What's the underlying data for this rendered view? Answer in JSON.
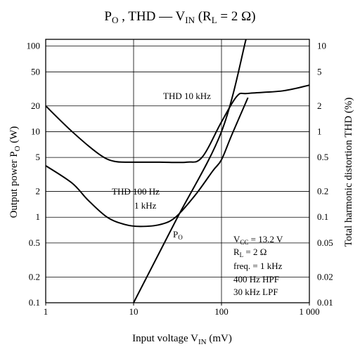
{
  "chart_data": {
    "type": "line",
    "title": {
      "p": "P",
      "o": "O",
      "mid": " , THD — V",
      "in": "IN",
      "rl_open": " (R",
      "l": "L",
      "rl_value": " = 2 Ω)"
    },
    "xlabel": {
      "main": "Input voltage  V",
      "sub": "IN",
      "unit": " (mV)"
    },
    "ylabel_left": {
      "main": "Output power  P",
      "sub": "O",
      "unit": " (W)"
    },
    "ylabel_right": {
      "main": "Total harmonic distortion  THD (%)"
    },
    "x_scale": "log",
    "y_left_scale": "log",
    "y_right_scale": "log",
    "xlim": [
      1,
      1000
    ],
    "ylim_left": [
      0.1,
      120
    ],
    "ylim_right": [
      0.01,
      12
    ],
    "grid": true,
    "x_ticks": [
      {
        "value": 1,
        "label": "1"
      },
      {
        "value": 10,
        "label": "10"
      },
      {
        "value": 100,
        "label": "100"
      },
      {
        "value": 1000,
        "label": "1 000"
      }
    ],
    "y_left_ticks": [
      {
        "value": 0.1,
        "label": "0.1"
      },
      {
        "value": 0.2,
        "label": "0.2"
      },
      {
        "value": 0.5,
        "label": "0.5"
      },
      {
        "value": 1,
        "label": "1"
      },
      {
        "value": 2,
        "label": "2"
      },
      {
        "value": 5,
        "label": "5"
      },
      {
        "value": 10,
        "label": "10"
      },
      {
        "value": 20,
        "label": "20"
      },
      {
        "value": 50,
        "label": "50"
      },
      {
        "value": 100,
        "label": "100"
      }
    ],
    "y_right_ticks": [
      {
        "value": 0.01,
        "label": "0.01"
      },
      {
        "value": 0.02,
        "label": "0.02"
      },
      {
        "value": 0.05,
        "label": "0.05"
      },
      {
        "value": 0.1,
        "label": "0.1"
      },
      {
        "value": 0.2,
        "label": "0.2"
      },
      {
        "value": 0.5,
        "label": "0.5"
      },
      {
        "value": 1,
        "label": "1"
      },
      {
        "value": 2,
        "label": "2"
      },
      {
        "value": 5,
        "label": "5"
      },
      {
        "value": 10,
        "label": "10"
      }
    ],
    "series": [
      {
        "axis": "left",
        "x": [
          10,
          30,
          100,
          190
        ],
        "y": [
          0.1,
          0.9,
          10,
          120
        ]
      },
      {
        "axis": "right",
        "x": [
          1,
          2,
          4,
          6,
          10,
          20,
          40,
          60,
          100,
          150,
          200,
          500,
          1000
        ],
        "y": [
          2.0,
          1.0,
          0.55,
          0.45,
          0.44,
          0.44,
          0.44,
          0.5,
          1.3,
          2.6,
          2.8,
          3.0,
          3.5
        ]
      },
      {
        "axis": "right",
        "x": [
          1,
          2,
          3,
          5,
          8,
          12,
          20,
          30,
          50,
          80,
          100,
          130,
          200
        ],
        "y": [
          0.4,
          0.25,
          0.16,
          0.1,
          0.082,
          0.078,
          0.082,
          0.1,
          0.18,
          0.35,
          0.47,
          0.9,
          2.5
        ]
      }
    ],
    "annotations": {
      "thd10k": "THD 10 kHz",
      "thd100": "THD 100 Hz",
      "thd1k": "1 kHz",
      "po": {
        "main": "P",
        "sub": "O"
      }
    },
    "conditions": [
      {
        "pre": "V",
        "sub": "CC",
        "post": " = 13.2 V"
      },
      {
        "pre": "R",
        "sub": "L",
        "post": " = 2 Ω"
      },
      {
        "pre": "freq. = 1 kHz",
        "sub": "",
        "post": ""
      },
      {
        "pre": "400 Hz HPF",
        "sub": "",
        "post": ""
      },
      {
        "pre": "30 kHz LPF",
        "sub": "",
        "post": ""
      }
    ]
  }
}
